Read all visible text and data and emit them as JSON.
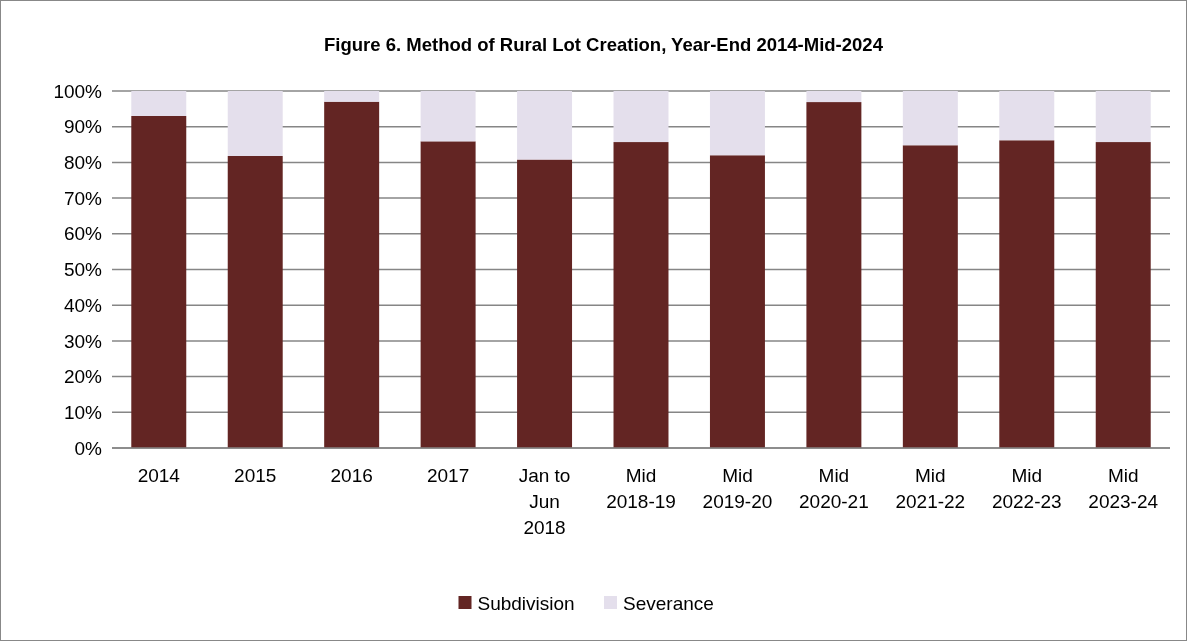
{
  "chart_data": {
    "type": "bar",
    "title": "Figure 6. Method of Rural Lot Creation, Year-End 2014-Mid-2024",
    "categories": [
      "2014",
      "2015",
      "2016",
      "2017",
      "Jan to Jun 2018",
      "Mid 2018-19",
      "Mid 2019-20",
      "Mid 2020-21",
      "Mid 2021-22",
      "Mid 2022-23",
      "Mid 2023-24"
    ],
    "stacked": true,
    "series": [
      {
        "name": "Subdivision",
        "color": "#632523",
        "values": [
          93.0,
          81.8,
          97.0,
          85.9,
          80.8,
          85.7,
          82.0,
          96.9,
          84.8,
          86.2,
          85.7
        ]
      },
      {
        "name": "Severance",
        "color": "#e4dfec",
        "values": [
          7.0,
          18.2,
          3.0,
          14.1,
          19.2,
          14.3,
          18.0,
          3.1,
          15.2,
          13.8,
          14.3
        ]
      }
    ],
    "ylim": [
      0,
      100
    ],
    "yticks": [
      {
        "value": 0,
        "label": "0%"
      },
      {
        "value": 10,
        "label": "10%"
      },
      {
        "value": 20,
        "label": "20%"
      },
      {
        "value": 30,
        "label": "30%"
      },
      {
        "value": 40,
        "label": "40%"
      },
      {
        "value": 50,
        "label": "50%"
      },
      {
        "value": 60,
        "label": "60%"
      },
      {
        "value": 70,
        "label": "70%"
      },
      {
        "value": 80,
        "label": "80%"
      },
      {
        "value": 90,
        "label": "90%"
      },
      {
        "value": 100,
        "label": "100%"
      }
    ],
    "grid": "y",
    "legend": "bottom"
  }
}
